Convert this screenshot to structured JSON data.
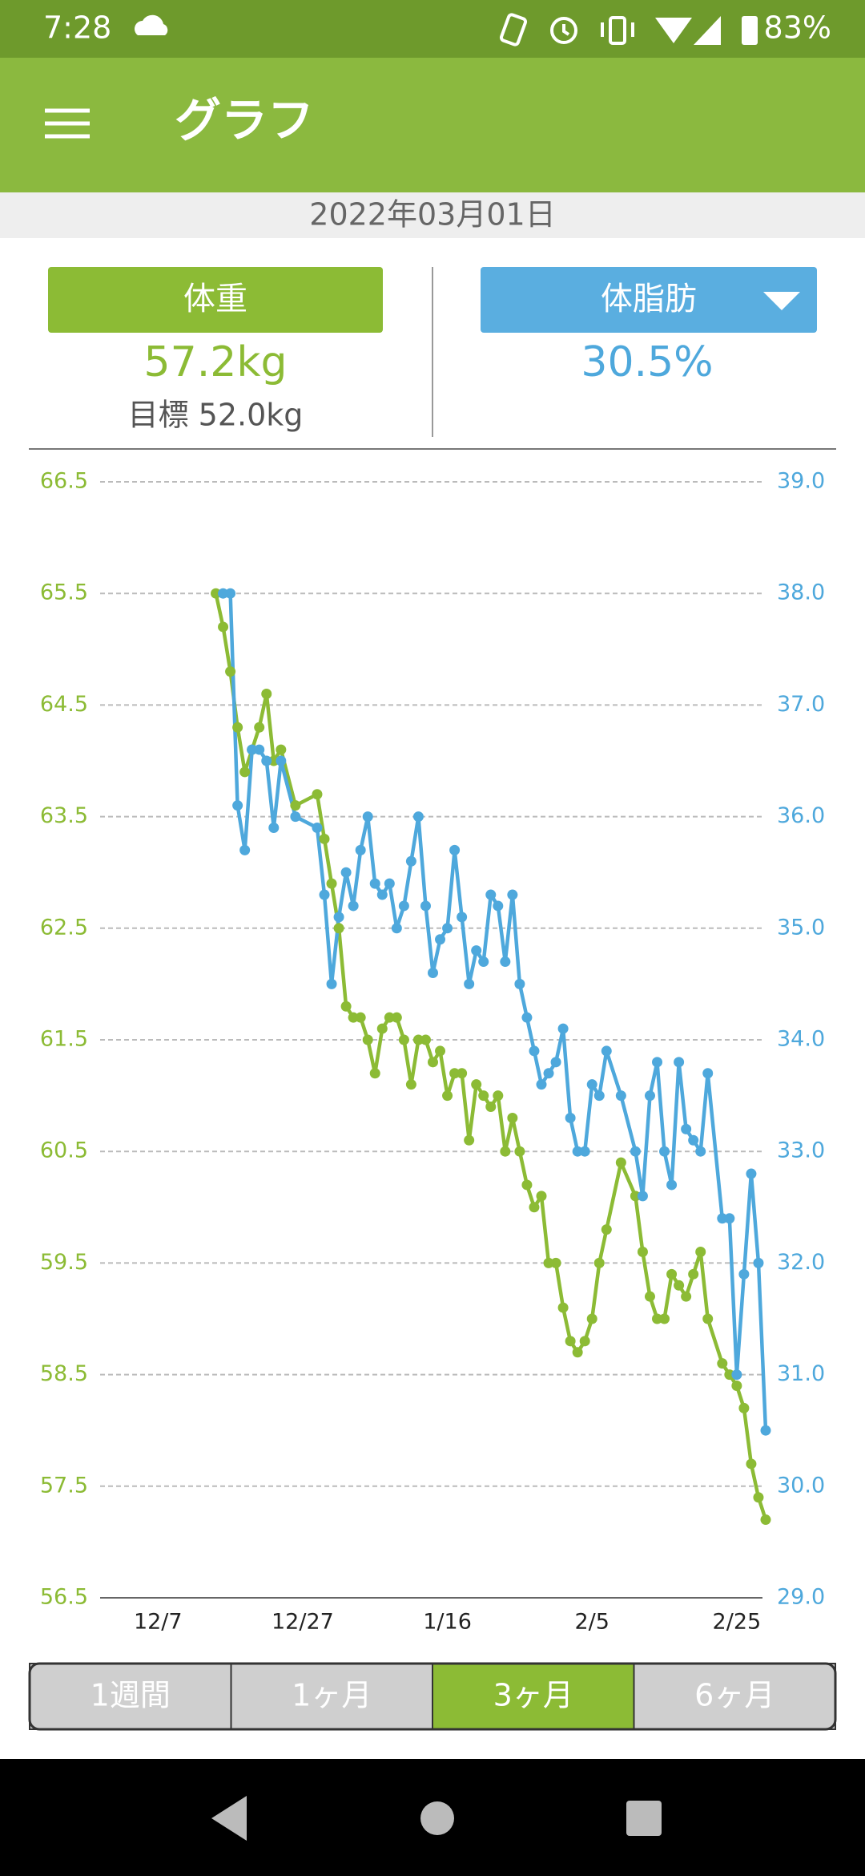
{
  "status_bar": {
    "time": "7:28",
    "battery": "83%"
  },
  "app_bar": {
    "title": "グラフ"
  },
  "date": "2022年03月01日",
  "summary": {
    "weight": {
      "label": "体重",
      "value": "57.2kg",
      "goal": "目標 52.0kg"
    },
    "body_fat": {
      "label": "体脂肪",
      "value": "30.5%"
    }
  },
  "chart_data": {
    "type": "line",
    "x": [
      "12/15",
      "12/16",
      "12/17",
      "12/18",
      "12/19",
      "12/20",
      "12/21",
      "12/22",
      "12/23",
      "12/24",
      "12/26",
      "12/29",
      "12/30",
      "12/31",
      "1/1",
      "1/2",
      "1/3",
      "1/4",
      "1/5",
      "1/6",
      "1/7",
      "1/8",
      "1/9",
      "1/10",
      "1/11",
      "1/12",
      "1/13",
      "1/14",
      "1/15",
      "1/16",
      "1/17",
      "1/18",
      "1/19",
      "1/20",
      "1/21",
      "1/22",
      "1/23",
      "1/24",
      "1/25",
      "1/26",
      "1/27",
      "1/28",
      "1/29",
      "1/30",
      "1/31",
      "2/1",
      "2/2",
      "2/3",
      "2/4",
      "2/5",
      "2/6",
      "2/7",
      "2/9",
      "2/11",
      "2/12",
      "2/13",
      "2/14",
      "2/15",
      "2/16",
      "2/17",
      "2/18",
      "2/19",
      "2/20",
      "2/21",
      "2/23",
      "2/24",
      "2/25",
      "2/26",
      "2/27",
      "2/28",
      "3/1"
    ],
    "series": [
      {
        "color": "#8cbb35",
        "values": [
          65.5,
          65.2,
          64.8,
          64.3,
          63.9,
          64.1,
          64.3,
          64.6,
          64.0,
          64.1,
          63.6,
          63.7,
          63.3,
          62.9,
          62.5,
          61.8,
          61.7,
          61.7,
          61.5,
          61.2,
          61.6,
          61.7,
          61.7,
          61.5,
          61.1,
          61.5,
          61.5,
          61.3,
          61.4,
          61.0,
          61.2,
          61.2,
          60.6,
          61.1,
          61.0,
          60.9,
          61.0,
          60.5,
          60.8,
          60.5,
          60.2,
          60.0,
          60.1,
          59.5,
          59.5,
          59.1,
          58.8,
          58.7,
          58.8,
          59.0,
          59.5,
          59.8,
          60.4,
          60.1,
          59.6,
          59.2,
          59.0,
          59.0,
          59.4,
          59.3,
          59.2,
          59.4,
          59.6,
          59.0,
          58.6,
          58.5,
          58.4,
          58.2,
          57.7,
          57.4,
          57.2
        ]
      },
      {
        "color": "#4ea8dc",
        "axis": "y2",
        "values": [
          null,
          38.0,
          38.0,
          36.1,
          35.7,
          36.6,
          36.6,
          36.5,
          35.9,
          36.5,
          36.0,
          35.9,
          35.3,
          34.5,
          35.1,
          35.5,
          35.2,
          35.7,
          36.0,
          35.4,
          35.3,
          35.4,
          35.0,
          35.2,
          35.6,
          36.0,
          35.2,
          34.6,
          34.9,
          35.0,
          35.7,
          35.1,
          34.5,
          34.8,
          34.7,
          35.3,
          35.2,
          34.7,
          35.3,
          34.5,
          34.2,
          33.9,
          33.6,
          33.7,
          33.8,
          34.1,
          33.3,
          33.0,
          33.0,
          33.6,
          33.5,
          33.9,
          33.5,
          33.0,
          32.6,
          33.5,
          33.8,
          33.0,
          32.7,
          33.8,
          33.2,
          33.1,
          33.0,
          33.7,
          32.4,
          32.4,
          31.0,
          31.9,
          32.8,
          32.0,
          30.5
        ]
      }
    ],
    "xlim": [
      "11/29",
      "3/1"
    ],
    "xticks": [
      "12/7",
      "12/27",
      "1/16",
      "2/5",
      "2/25"
    ],
    "ylim": [
      56.5,
      66.5
    ],
    "yticks": [
      56.5,
      57.5,
      58.5,
      59.5,
      60.5,
      61.5,
      62.5,
      63.5,
      64.5,
      65.5,
      66.5
    ],
    "y2lim": [
      29,
      39
    ],
    "y2ticks": [
      {
        "value": 29,
        "label": "29.0"
      },
      {
        "value": 30,
        "label": "30.0"
      },
      {
        "value": 31,
        "label": "31.0"
      },
      {
        "value": 32,
        "label": "32.0"
      },
      {
        "value": 33,
        "label": "33.0"
      },
      {
        "value": 34,
        "label": "34.0"
      },
      {
        "value": 35,
        "label": "35.0"
      },
      {
        "value": 36,
        "label": "36.0"
      },
      {
        "value": 37,
        "label": "37.0"
      },
      {
        "value": 38,
        "label": "38.0"
      },
      {
        "value": 39,
        "label": "39.0"
      }
    ],
    "grid": true
  },
  "tabs": [
    "1週間",
    "1ヶ月",
    "3ヶ月",
    "6ヶ月"
  ],
  "selected_tab": 2
}
